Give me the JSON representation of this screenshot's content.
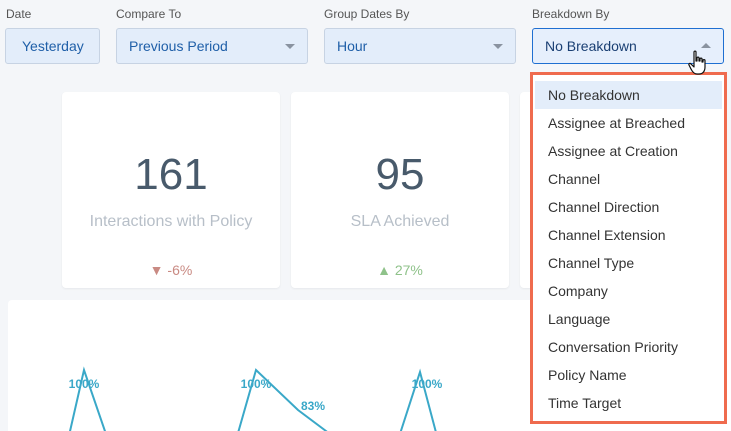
{
  "filters": {
    "date": {
      "label": "Date",
      "value": "Yesterday"
    },
    "compare_to": {
      "label": "Compare To",
      "value": "Previous Period"
    },
    "group_dates_by": {
      "label": "Group Dates By",
      "value": "Hour"
    },
    "breakdown_by": {
      "label": "Breakdown By",
      "value": "No Breakdown"
    }
  },
  "cards": [
    {
      "value": "161",
      "caption": "Interactions with Policy",
      "delta": "▼ -6%",
      "delta_color": "#c98a83"
    },
    {
      "value": "95",
      "caption": "SLA Achieved",
      "delta": "▲ 27%",
      "delta_color": "#8fc28a"
    }
  ],
  "chart_labels": [
    "100%",
    "100%",
    "83%",
    "100%"
  ],
  "dropdown": {
    "options": [
      "No Breakdown",
      "Assignee at Breached",
      "Assignee at Creation",
      "Channel",
      "Channel Direction",
      "Channel Extension",
      "Channel Type",
      "Company",
      "Language",
      "Conversation Priority",
      "Policy Name",
      "Time Target"
    ],
    "selected_index": 0
  },
  "colors": {
    "accent": "#1f6fd1",
    "highlight_border": "#ef6b4e",
    "line": "#3aa8c8"
  }
}
